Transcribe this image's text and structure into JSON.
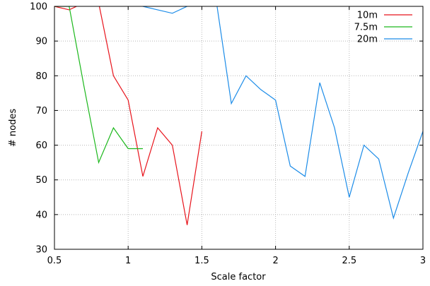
{
  "chart_data": {
    "type": "line",
    "title": "",
    "xlabel": "Scale factor",
    "ylabel": "# nodes",
    "xlim": [
      0.5,
      3
    ],
    "ylim": [
      30,
      100
    ],
    "xticks": [
      0.5,
      1,
      1.5,
      2,
      2.5,
      3
    ],
    "xtick_labels": [
      "0.5",
      "1",
      "1.5",
      "2",
      "2.5",
      "3"
    ],
    "yticks": [
      30,
      40,
      50,
      60,
      70,
      80,
      90,
      100
    ],
    "ytick_labels": [
      "30",
      "40",
      "50",
      "60",
      "70",
      "80",
      "90",
      "100"
    ],
    "grid": true,
    "legend_position": "top-right",
    "series": [
      {
        "name": "10m",
        "color": "#e8141c",
        "x": [
          0.5,
          0.6,
          0.7,
          0.8,
          0.9,
          1.0,
          1.1,
          1.2,
          1.3,
          1.4,
          1.5
        ],
        "y": [
          100,
          99,
          101,
          101,
          80,
          73,
          51,
          65,
          60,
          37,
          64
        ]
      },
      {
        "name": "7.5m",
        "color": "#1cb81c",
        "x": [
          0.5,
          0.6,
          0.7,
          0.8,
          0.9,
          1.0,
          1.1
        ],
        "y": [
          100,
          100,
          77,
          55,
          65,
          59,
          59
        ]
      },
      {
        "name": "20m",
        "color": "#1c8ce8",
        "x": [
          0.5,
          0.6,
          0.7,
          0.8,
          0.9,
          1.0,
          1.1,
          1.2,
          1.3,
          1.4,
          1.5,
          1.6,
          1.7,
          1.8,
          1.9,
          2.0,
          2.1,
          2.2,
          2.3,
          2.4,
          2.5,
          2.6,
          2.7,
          2.8,
          2.9,
          3.0
        ],
        "y": [
          101,
          101,
          101,
          101,
          101,
          101,
          100,
          99,
          98,
          100,
          101,
          101,
          72,
          80,
          76,
          73,
          54,
          51,
          78,
          65,
          45,
          60,
          56,
          39,
          52,
          64
        ]
      }
    ]
  }
}
